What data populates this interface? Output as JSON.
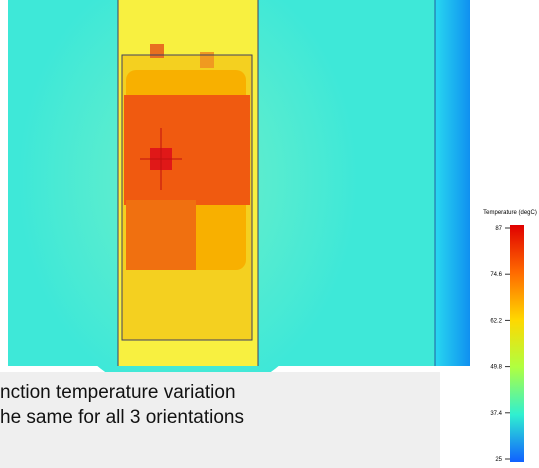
{
  "colorbar": {
    "title": "Temperature (degC)",
    "ticks": [
      87,
      74.6,
      62.2,
      49.8,
      37.4,
      25
    ]
  },
  "caption": {
    "lines": [
      "nction  temperature variation",
      "he same for all 3 orientations"
    ]
  }
}
